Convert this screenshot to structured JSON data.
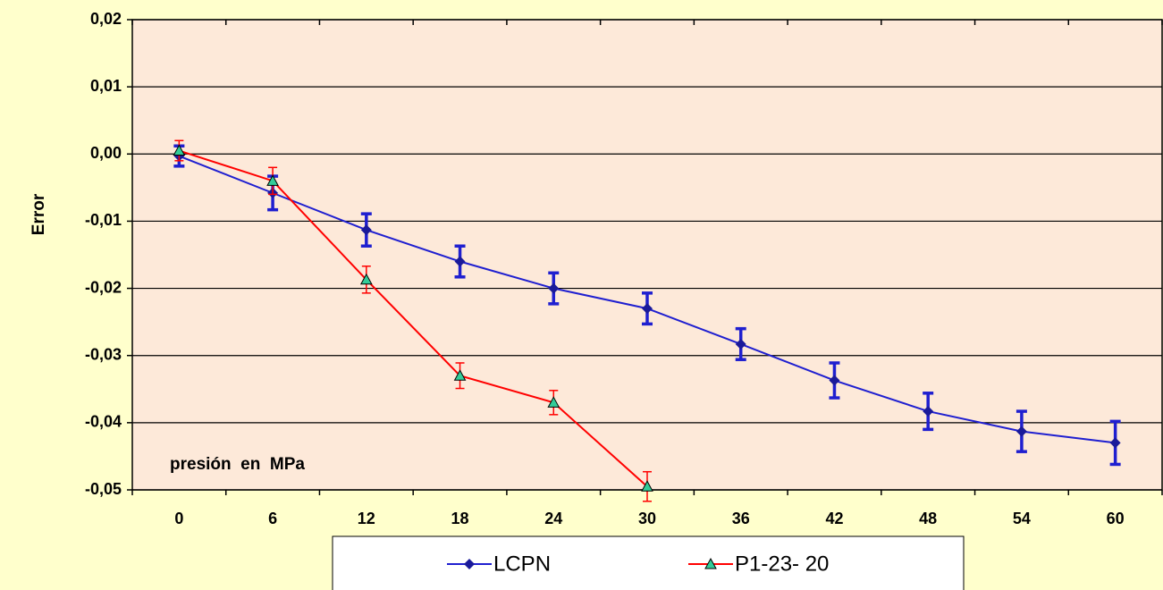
{
  "chart_data": {
    "type": "line",
    "y_label": "Error",
    "annotation": "presión  en  MPa",
    "categories": [
      "0",
      "6",
      "12",
      "18",
      "24",
      "30",
      "36",
      "42",
      "48",
      "54",
      "60"
    ],
    "ylim": [
      -0.05,
      0.02
    ],
    "yticks": [
      {
        "value": -0.05,
        "label": "-0,05"
      },
      {
        "value": -0.04,
        "label": "-0,04"
      },
      {
        "value": -0.03,
        "label": "-0,03"
      },
      {
        "value": -0.02,
        "label": "-0,02"
      },
      {
        "value": -0.01,
        "label": "-0,01"
      },
      {
        "value": 0,
        "label": "0,00"
      },
      {
        "value": 0.01,
        "label": "0,01"
      },
      {
        "value": 0.02,
        "label": "0,02"
      }
    ],
    "grid": true,
    "series": [
      {
        "name": "LCPN",
        "color": "#1f1fd0",
        "marker": "diamond",
        "marker_color": "#1a1a9a",
        "values": [
          -0.0003,
          -0.0058,
          -0.0113,
          -0.016,
          -0.02,
          -0.023,
          -0.0283,
          -0.0337,
          -0.0383,
          -0.0413,
          -0.043
        ],
        "errors": [
          0.0015,
          0.0025,
          0.0024,
          0.0023,
          0.0023,
          0.0023,
          0.0023,
          0.0026,
          0.0027,
          0.003,
          0.0032
        ]
      },
      {
        "name": "P1-23- 20",
        "color": "#ff0000",
        "marker": "triangle",
        "marker_color": "#33cc99",
        "values": [
          0.0005,
          -0.004,
          -0.0187,
          -0.033,
          -0.037,
          -0.0495,
          null,
          null,
          null,
          null,
          null
        ],
        "errors": [
          0.0015,
          0.002,
          0.002,
          0.0019,
          0.0018,
          0.0022,
          null,
          null,
          null,
          null,
          null
        ]
      }
    ]
  }
}
